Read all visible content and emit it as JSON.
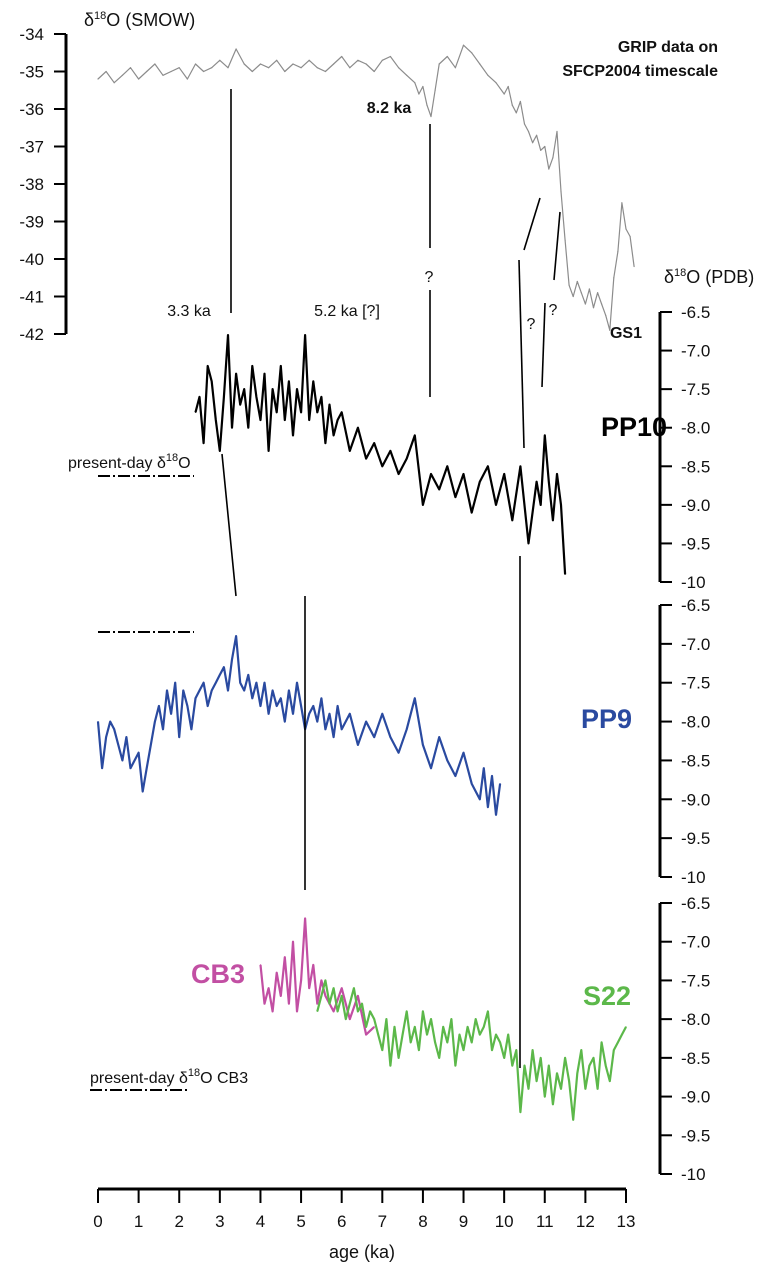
{
  "chart_data": {
    "type": "line",
    "x_axis": {
      "label": "age (ka)",
      "ticks": [
        "0",
        "1",
        "2",
        "3",
        "4",
        "5",
        "6",
        "7",
        "8",
        "9",
        "10",
        "11",
        "12",
        "13"
      ],
      "range": [
        0,
        13
      ]
    },
    "left_axis": {
      "label": "δ18O (SMOW)",
      "label_base": "δ",
      "label_sup": "18",
      "label_rest": "O (SMOW)",
      "ticks": [
        "-34",
        "-35",
        "-36",
        "-37",
        "-38",
        "-39",
        "-40",
        "-41",
        "-42"
      ],
      "range": [
        -42,
        -34
      ]
    },
    "right_axis_title": {
      "label": "δ18O (PDB)",
      "label_base": "δ",
      "label_sup": "18",
      "label_rest": "O (PDB)"
    },
    "right_axis_ticks": [
      "-6.5",
      "-7.0",
      "-7.5",
      "-8.0",
      "-8.5",
      "-9.0",
      "-9.5",
      "-10"
    ],
    "right_axis_range": [
      -10,
      -6.5
    ],
    "panels": [
      {
        "name": "GRIP",
        "note_line1": "GRIP data on",
        "note_line2": "SFCP2004 timescale",
        "color": "#8c8c8c",
        "x": [
          0.0,
          0.2,
          0.4,
          0.6,
          0.8,
          1.0,
          1.2,
          1.4,
          1.6,
          1.8,
          2.0,
          2.2,
          2.4,
          2.6,
          2.8,
          3.0,
          3.2,
          3.4,
          3.6,
          3.8,
          4.0,
          4.2,
          4.4,
          4.6,
          4.8,
          5.0,
          5.2,
          5.4,
          5.6,
          5.8,
          6.0,
          6.2,
          6.4,
          6.6,
          6.8,
          7.0,
          7.2,
          7.4,
          7.6,
          7.8,
          7.9,
          8.0,
          8.1,
          8.2,
          8.3,
          8.4,
          8.6,
          8.8,
          9.0,
          9.2,
          9.4,
          9.6,
          9.8,
          10.0,
          10.1,
          10.2,
          10.3,
          10.4,
          10.5,
          10.6,
          10.7,
          10.8,
          10.9,
          11.0,
          11.1,
          11.2,
          11.3,
          11.4,
          11.5,
          11.6,
          11.7,
          11.8,
          11.9,
          12.0,
          12.1,
          12.2,
          12.3,
          12.4,
          12.5,
          12.6,
          12.7,
          12.8,
          12.9,
          13.0,
          13.1,
          13.2
        ],
        "y": [
          -35.2,
          -35.0,
          -35.3,
          -35.1,
          -34.9,
          -35.2,
          -35.0,
          -34.8,
          -35.1,
          -35.0,
          -34.9,
          -35.2,
          -34.8,
          -35.0,
          -34.9,
          -34.7,
          -34.9,
          -34.4,
          -34.8,
          -35.0,
          -34.8,
          -34.9,
          -34.7,
          -35.0,
          -34.8,
          -34.9,
          -34.7,
          -34.9,
          -35.0,
          -34.8,
          -34.6,
          -34.9,
          -34.7,
          -34.8,
          -35.0,
          -34.7,
          -34.6,
          -34.9,
          -35.1,
          -35.3,
          -35.6,
          -35.4,
          -35.9,
          -36.2,
          -35.5,
          -34.8,
          -34.6,
          -34.9,
          -34.3,
          -34.5,
          -34.8,
          -35.1,
          -35.3,
          -35.6,
          -35.4,
          -35.9,
          -36.1,
          -35.8,
          -36.4,
          -36.6,
          -36.9,
          -36.7,
          -37.1,
          -37.0,
          -37.6,
          -37.3,
          -36.6,
          -38.2,
          -39.5,
          -40.7,
          -41.0,
          -40.6,
          -40.9,
          -41.2,
          -40.8,
          -41.3,
          -40.9,
          -41.2,
          -41.5,
          -41.9,
          -40.5,
          -39.8,
          -38.5,
          -39.2,
          -39.4,
          -40.2
        ],
        "labels": {
          "event_8_2": "8.2 ka",
          "q1": "?",
          "q2": "?",
          "q3": "?",
          "gs1": "GS1"
        }
      },
      {
        "name": "PP10",
        "color": "#000000",
        "x": [
          2.4,
          2.5,
          2.6,
          2.7,
          2.8,
          2.9,
          3.0,
          3.1,
          3.2,
          3.3,
          3.4,
          3.5,
          3.6,
          3.7,
          3.8,
          3.9,
          4.0,
          4.1,
          4.2,
          4.3,
          4.4,
          4.5,
          4.6,
          4.7,
          4.8,
          4.9,
          5.0,
          5.1,
          5.2,
          5.3,
          5.4,
          5.5,
          5.6,
          5.7,
          5.8,
          5.9,
          6.0,
          6.2,
          6.4,
          6.6,
          6.8,
          7.0,
          7.2,
          7.4,
          7.6,
          7.8,
          8.0,
          8.2,
          8.4,
          8.6,
          8.8,
          9.0,
          9.2,
          9.4,
          9.6,
          9.8,
          10.0,
          10.2,
          10.4,
          10.6,
          10.8,
          10.9,
          11.0,
          11.1,
          11.2,
          11.3,
          11.4,
          11.5
        ],
        "y": [
          -7.8,
          -7.6,
          -8.2,
          -7.2,
          -7.4,
          -7.9,
          -8.3,
          -7.6,
          -6.8,
          -8.0,
          -7.3,
          -7.7,
          -7.5,
          -8.0,
          -7.2,
          -7.6,
          -7.9,
          -7.3,
          -8.3,
          -7.5,
          -7.8,
          -7.2,
          -7.9,
          -7.4,
          -8.1,
          -7.5,
          -7.8,
          -6.8,
          -7.9,
          -7.4,
          -7.8,
          -7.6,
          -8.2,
          -7.7,
          -8.1,
          -7.9,
          -7.8,
          -8.3,
          -8.0,
          -8.4,
          -8.2,
          -8.5,
          -8.3,
          -8.6,
          -8.4,
          -8.1,
          -9.0,
          -8.6,
          -8.8,
          -8.5,
          -8.9,
          -8.6,
          -9.1,
          -8.7,
          -8.5,
          -9.0,
          -8.6,
          -9.2,
          -8.5,
          -9.5,
          -8.7,
          -9.0,
          -8.1,
          -8.7,
          -9.2,
          -8.6,
          -9.0,
          -9.9
        ],
        "labels": {
          "present_day": "present-day δ18O",
          "present_day_base": "present-day δ",
          "present_day_sup": "18",
          "present_day_rest": "O",
          "ann_3_3": "3.3 ka",
          "ann_5_2": "5.2 ka [?]"
        }
      },
      {
        "name": "PP9",
        "color": "#2a4aa0",
        "x": [
          0.0,
          0.1,
          0.2,
          0.3,
          0.4,
          0.5,
          0.6,
          0.7,
          0.8,
          0.9,
          1.0,
          1.1,
          1.2,
          1.3,
          1.4,
          1.5,
          1.6,
          1.7,
          1.8,
          1.9,
          2.0,
          2.1,
          2.2,
          2.3,
          2.4,
          2.5,
          2.6,
          2.7,
          2.8,
          2.9,
          3.0,
          3.1,
          3.2,
          3.3,
          3.4,
          3.5,
          3.6,
          3.7,
          3.8,
          3.9,
          4.0,
          4.1,
          4.2,
          4.3,
          4.4,
          4.5,
          4.6,
          4.7,
          4.8,
          4.9,
          5.0,
          5.1,
          5.2,
          5.3,
          5.4,
          5.5,
          5.6,
          5.7,
          5.8,
          5.9,
          6.0,
          6.2,
          6.4,
          6.6,
          6.8,
          7.0,
          7.2,
          7.4,
          7.6,
          7.8,
          8.0,
          8.2,
          8.4,
          8.6,
          8.8,
          9.0,
          9.2,
          9.4,
          9.5,
          9.6,
          9.7,
          9.8,
          9.9
        ],
        "y": [
          -8.0,
          -8.6,
          -8.2,
          -8.0,
          -8.1,
          -8.3,
          -8.5,
          -8.2,
          -8.6,
          -8.5,
          -8.4,
          -8.9,
          -8.6,
          -8.3,
          -8.0,
          -7.8,
          -8.1,
          -7.6,
          -7.9,
          -7.5,
          -8.2,
          -7.6,
          -7.8,
          -8.1,
          -7.7,
          -7.6,
          -7.5,
          -7.8,
          -7.6,
          -7.5,
          -7.4,
          -7.3,
          -7.6,
          -7.2,
          -6.9,
          -7.5,
          -7.6,
          -7.4,
          -7.7,
          -7.5,
          -7.8,
          -7.5,
          -7.9,
          -7.6,
          -7.8,
          -7.7,
          -8.0,
          -7.6,
          -7.9,
          -7.5,
          -7.8,
          -8.1,
          -7.9,
          -7.8,
          -8.0,
          -7.7,
          -8.1,
          -7.9,
          -8.2,
          -7.8,
          -8.1,
          -7.9,
          -8.3,
          -8.0,
          -8.2,
          -7.9,
          -8.2,
          -8.4,
          -8.1,
          -7.7,
          -8.3,
          -8.6,
          -8.2,
          -8.5,
          -8.7,
          -8.4,
          -8.8,
          -9.0,
          -8.6,
          -9.1,
          -8.7,
          -9.2,
          -8.8
        ],
        "labels": {}
      },
      {
        "name": "CB3",
        "color": "#c24fa3",
        "x": [
          4.0,
          4.1,
          4.2,
          4.3,
          4.4,
          4.5,
          4.6,
          4.7,
          4.8,
          4.9,
          5.0,
          5.1,
          5.2,
          5.3,
          5.4,
          5.5,
          5.6,
          5.8,
          6.0,
          6.2,
          6.4,
          6.6,
          6.8
        ],
        "y": [
          -7.3,
          -7.8,
          -7.6,
          -7.9,
          -7.4,
          -7.7,
          -7.2,
          -7.8,
          -7.0,
          -7.9,
          -7.5,
          -6.7,
          -7.6,
          -7.3,
          -7.8,
          -7.5,
          -7.7,
          -7.9,
          -7.6,
          -8.0,
          -7.7,
          -8.2,
          -8.1
        ],
        "labels": {
          "present_day": "present-day δ18O CB3",
          "present_day_base": "present-day δ",
          "present_day_sup": "18",
          "present_day_rest": "O CB3"
        }
      },
      {
        "name": "S22",
        "color": "#5cb84a",
        "x": [
          5.4,
          5.5,
          5.6,
          5.7,
          5.8,
          5.9,
          6.0,
          6.1,
          6.2,
          6.3,
          6.4,
          6.5,
          6.6,
          6.7,
          6.8,
          6.9,
          7.0,
          7.1,
          7.2,
          7.3,
          7.4,
          7.5,
          7.6,
          7.7,
          7.8,
          7.9,
          8.0,
          8.1,
          8.2,
          8.3,
          8.4,
          8.5,
          8.6,
          8.7,
          8.8,
          8.9,
          9.0,
          9.1,
          9.2,
          9.3,
          9.4,
          9.5,
          9.6,
          9.7,
          9.8,
          9.9,
          10.0,
          10.1,
          10.2,
          10.3,
          10.4,
          10.5,
          10.6,
          10.7,
          10.8,
          10.9,
          11.0,
          11.1,
          11.2,
          11.3,
          11.4,
          11.5,
          11.6,
          11.7,
          11.8,
          11.9,
          12.0,
          12.1,
          12.2,
          12.3,
          12.4,
          12.5,
          12.6,
          12.7,
          12.8,
          12.9,
          13.0
        ],
        "y": [
          -7.9,
          -7.7,
          -7.5,
          -7.8,
          -7.6,
          -7.9,
          -7.7,
          -8.0,
          -7.8,
          -7.6,
          -7.9,
          -7.8,
          -8.1,
          -7.9,
          -8.0,
          -8.2,
          -8.4,
          -8.0,
          -8.6,
          -8.1,
          -8.5,
          -8.2,
          -7.9,
          -8.3,
          -8.1,
          -8.4,
          -7.9,
          -8.2,
          -8.0,
          -8.3,
          -8.5,
          -8.1,
          -8.3,
          -8.0,
          -8.6,
          -8.2,
          -8.4,
          -8.1,
          -8.3,
          -8.0,
          -8.2,
          -8.1,
          -7.9,
          -8.4,
          -8.2,
          -8.3,
          -8.5,
          -8.2,
          -8.6,
          -8.4,
          -9.2,
          -8.6,
          -8.9,
          -8.4,
          -8.8,
          -8.5,
          -9.0,
          -8.6,
          -9.1,
          -8.7,
          -8.9,
          -8.5,
          -8.8,
          -9.3,
          -8.7,
          -8.4,
          -8.9,
          -8.6,
          -8.5,
          -8.9,
          -8.3,
          -8.6,
          -8.8,
          -8.4,
          -8.3,
          -8.2,
          -8.1
        ],
        "labels": {}
      }
    ]
  }
}
